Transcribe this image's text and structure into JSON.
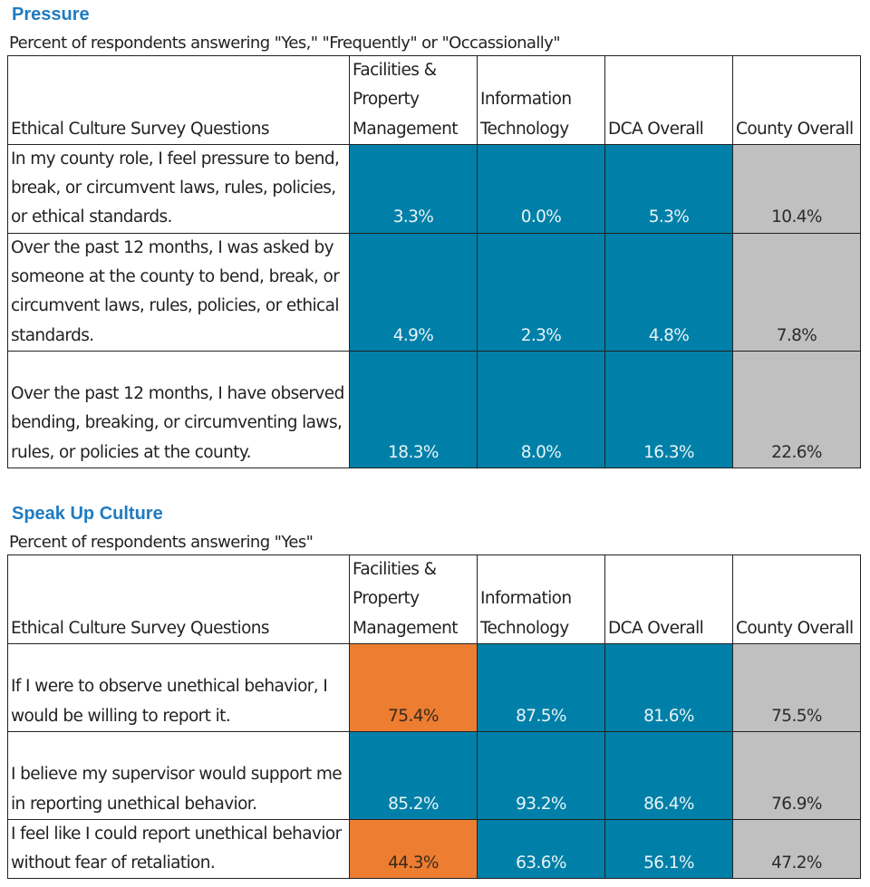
{
  "colors": {
    "title": "#1f7bc1",
    "department_cell": "#0080a8",
    "below_county_cell": "#ec7d31",
    "county_cell": "#c0c0c0"
  },
  "columns": {
    "question": "Ethical Culture Survey Questions",
    "fpm": "Facilities & Property Management",
    "it": "Information Technology",
    "dca": "DCA Overall",
    "county": "County Overall"
  },
  "sections": [
    {
      "title": "Pressure",
      "subtitle": "Percent of respondents answering \"Yes,\" \"Frequently\" or \"Occassionally\"",
      "rows": [
        {
          "question": "In my county role, I feel pressure to bend, break, or circumvent laws, rules, policies, or ethical standards.",
          "fpm": "3.3%",
          "fpm_color": "blue",
          "it": "0.0%",
          "it_color": "blue",
          "dca": "5.3%",
          "dca_color": "blue",
          "county": "10.4%"
        },
        {
          "question": "Over the past 12 months, I was asked by someone at the county to bend, break, or circumvent laws, rules, policies, or ethical standards.",
          "fpm": "4.9%",
          "fpm_color": "blue",
          "it": "2.3%",
          "it_color": "blue",
          "dca": "4.8%",
          "dca_color": "blue",
          "county": "7.8%"
        },
        {
          "question": "Over the past 12 months, I have observed bending, breaking, or circumventing laws, rules, or policies at the county.",
          "fpm": "18.3%",
          "fpm_color": "blue",
          "it": "8.0%",
          "it_color": "blue",
          "dca": "16.3%",
          "dca_color": "blue",
          "county": "22.6%"
        }
      ]
    },
    {
      "title": "Speak Up Culture",
      "subtitle": "Percent of respondents answering \"Yes\"",
      "rows": [
        {
          "question": "If I were to observe unethical behavior, I would be willing to report it.",
          "fpm": "75.4%",
          "fpm_color": "orange",
          "it": "87.5%",
          "it_color": "blue",
          "dca": "81.6%",
          "dca_color": "blue",
          "county": "75.5%"
        },
        {
          "question": "I believe my supervisor would support me in reporting unethical behavior.",
          "fpm": "85.2%",
          "fpm_color": "blue",
          "it": "93.2%",
          "it_color": "blue",
          "dca": "86.4%",
          "dca_color": "blue",
          "county": "76.9%"
        },
        {
          "question": "I feel like I could report unethical behavior without fear of retaliation.",
          "fpm": "44.3%",
          "fpm_color": "orange",
          "it": "63.6%",
          "it_color": "blue",
          "dca": "56.1%",
          "dca_color": "blue",
          "county": "47.2%"
        }
      ]
    }
  ]
}
